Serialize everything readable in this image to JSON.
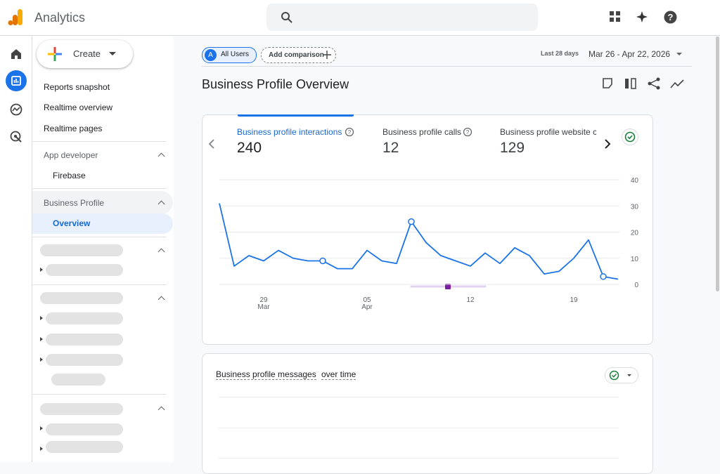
{
  "header": {
    "app_name": "Analytics"
  },
  "nav": {
    "create": "Create",
    "items": [
      "Reports snapshot",
      "Realtime overview",
      "Realtime pages"
    ],
    "sections": [
      {
        "title": "App developer",
        "items": [
          "Firebase"
        ]
      },
      {
        "title": "Business Profile",
        "items": [
          "Overview"
        ]
      }
    ]
  },
  "toolbar": {
    "segment_initial": "A",
    "segment": "All Users",
    "add_comparison": "Add comparison",
    "range_label": "Last 28 days",
    "range": "Mar 26 - Apr 22, 2026"
  },
  "page": {
    "title": "Business Profile Overview"
  },
  "card1": {
    "metrics": [
      {
        "label": "Business profile interactions",
        "value": 240
      },
      {
        "label": "Business profile calls",
        "value": 12
      },
      {
        "label": "Business profile website c",
        "value": 129
      }
    ]
  },
  "card2": {
    "title": "Business profile messages",
    "title_suffix": "over time"
  },
  "chart_data": {
    "type": "line",
    "color": "#1a73e8",
    "categories": [
      null,
      null,
      null,
      "29",
      null,
      null,
      null,
      null,
      null,
      null,
      "05",
      null,
      null,
      null,
      null,
      null,
      null,
      "12",
      null,
      null,
      null,
      null,
      null,
      null,
      "19",
      null,
      null,
      null
    ],
    "category_months": [
      null,
      null,
      null,
      "Mar",
      null,
      null,
      null,
      null,
      null,
      null,
      "Apr",
      null,
      null,
      null,
      null,
      null,
      null,
      null,
      null,
      null,
      null,
      null,
      null,
      null,
      null,
      null,
      null,
      null
    ],
    "values": [
      31,
      7,
      11,
      9,
      13,
      10,
      9,
      9,
      6,
      6,
      13,
      9,
      8,
      24,
      16,
      11,
      9,
      7,
      12,
      8,
      14,
      11,
      4,
      5,
      10,
      17,
      3,
      2
    ],
    "marked_points": [
      7,
      13,
      26
    ],
    "ylim": [
      0,
      40
    ],
    "yticks": [
      0,
      10,
      20,
      30,
      40
    ],
    "grid": true
  }
}
